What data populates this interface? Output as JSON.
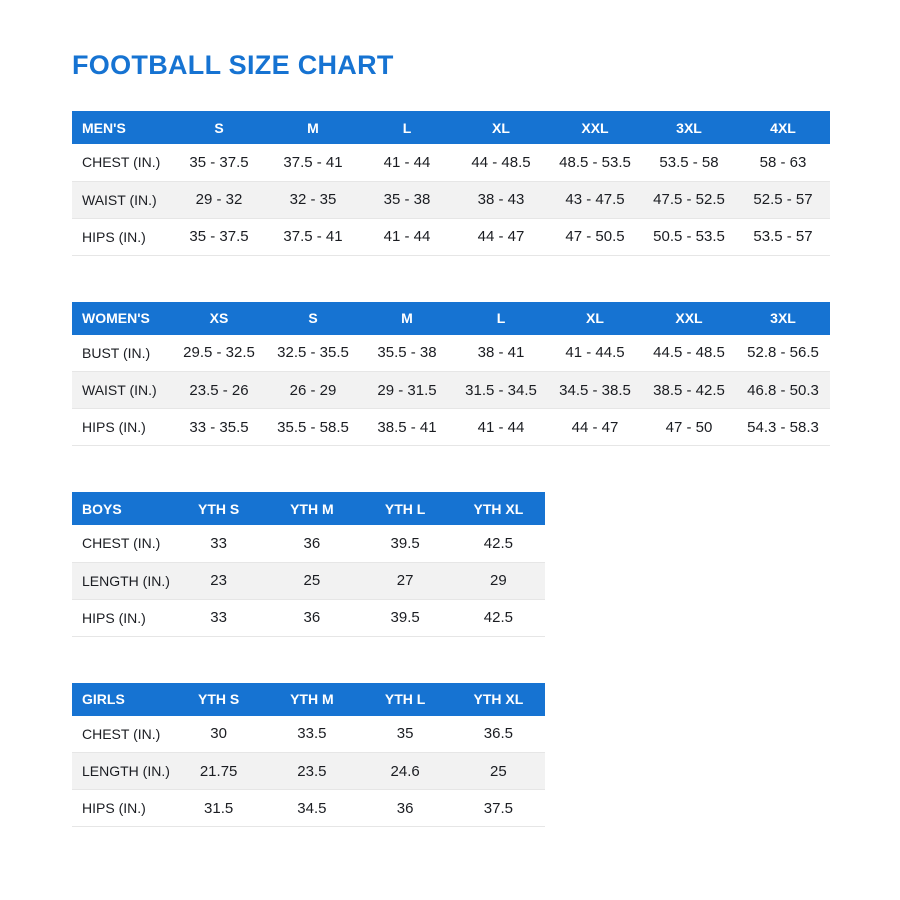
{
  "page": {
    "title": "FOOTBALL SIZE CHART"
  },
  "colors": {
    "accent_blue": "#1673d2",
    "header_text": "#ffffff",
    "row_stripe": "#f2f2f2",
    "row_border": "#e6e6e6",
    "body_text": "#1b1d22"
  },
  "tables": [
    {
      "name": "MEN'S",
      "wide": true,
      "columns": [
        "S",
        "M",
        "L",
        "XL",
        "XXL",
        "3XL",
        "4XL"
      ],
      "rows": [
        {
          "label": "CHEST (IN.)",
          "values": [
            "35 - 37.5",
            "37.5 - 41",
            "41 - 44",
            "44 - 48.5",
            "48.5 - 53.5",
            "53.5 - 58",
            "58 - 63"
          ]
        },
        {
          "label": "WAIST (IN.)",
          "values": [
            "29 - 32",
            "32 - 35",
            "35 - 38",
            "38 - 43",
            "43 - 47.5",
            "47.5 - 52.5",
            "52.5 - 57"
          ]
        },
        {
          "label": "HIPS (IN.)",
          "values": [
            "35 - 37.5",
            "37.5 - 41",
            "41 - 44",
            "44 - 47",
            "47 - 50.5",
            "50.5 - 53.5",
            "53.5 - 57"
          ]
        }
      ]
    },
    {
      "name": "WOMEN'S",
      "wide": true,
      "columns": [
        "XS",
        "S",
        "M",
        "L",
        "XL",
        "XXL",
        "3XL"
      ],
      "rows": [
        {
          "label": "BUST (IN.)",
          "values": [
            "29.5 - 32.5",
            "32.5 - 35.5",
            "35.5 - 38",
            "38 - 41",
            "41 - 44.5",
            "44.5 - 48.5",
            "52.8 - 56.5"
          ]
        },
        {
          "label": "WAIST (IN.)",
          "values": [
            "23.5 - 26",
            "26 - 29",
            "29 - 31.5",
            "31.5 - 34.5",
            "34.5 - 38.5",
            "38.5 - 42.5",
            "46.8 - 50.3"
          ]
        },
        {
          "label": "HIPS (IN.)",
          "values": [
            "33 - 35.5",
            "35.5 - 58.5",
            "38.5 - 41",
            "41 - 44",
            "44 - 47",
            "47 - 50",
            "54.3 - 58.3"
          ]
        }
      ]
    },
    {
      "name": "BOYS",
      "wide": false,
      "columns": [
        "YTH S",
        "YTH M",
        "YTH L",
        "YTH XL"
      ],
      "rows": [
        {
          "label": "CHEST (IN.)",
          "values": [
            "33",
            "36",
            "39.5",
            "42.5"
          ]
        },
        {
          "label": "LENGTH (IN.)",
          "values": [
            "23",
            "25",
            "27",
            "29"
          ]
        },
        {
          "label": "HIPS (IN.)",
          "values": [
            "33",
            "36",
            "39.5",
            "42.5"
          ]
        }
      ]
    },
    {
      "name": "GIRLS",
      "wide": false,
      "columns": [
        "YTH S",
        "YTH M",
        "YTH L",
        "YTH XL"
      ],
      "rows": [
        {
          "label": "CHEST (IN.)",
          "values": [
            "30",
            "33.5",
            "35",
            "36.5"
          ]
        },
        {
          "label": "LENGTH (IN.)",
          "values": [
            "21.75",
            "23.5",
            "24.6",
            "25"
          ]
        },
        {
          "label": "HIPS (IN.)",
          "values": [
            "31.5",
            "34.5",
            "36",
            "37.5"
          ]
        }
      ]
    }
  ]
}
